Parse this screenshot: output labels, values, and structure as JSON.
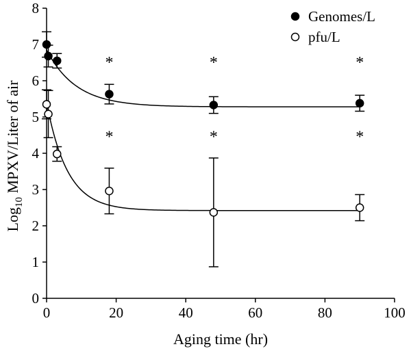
{
  "chart_data": {
    "type": "scatter",
    "xlabel": "Aging time (hr)",
    "ylabel_base": "Log",
    "ylabel_sub": "10",
    "ylabel_rest": " MPXV/Liter of air",
    "xlim": [
      0,
      100
    ],
    "ylim": [
      0,
      8
    ],
    "xticks": [
      0,
      20,
      40,
      60,
      80,
      100
    ],
    "yticks": [
      0,
      1,
      2,
      3,
      4,
      5,
      6,
      7,
      8
    ],
    "grid": false,
    "legend_position": "top-right",
    "series": [
      {
        "name": "Genomes/L",
        "marker": "filled-circle",
        "x": [
          0,
          0.5,
          3,
          18,
          48,
          90
        ],
        "y": [
          7.0,
          6.68,
          6.55,
          5.63,
          5.33,
          5.38
        ],
        "err": [
          0.35,
          0.3,
          0.2,
          0.27,
          0.23,
          0.22
        ],
        "fit": {
          "a": 5.28,
          "b": 1.57,
          "tau": 8.5
        }
      },
      {
        "name": "pfu/L",
        "marker": "open-circle",
        "x": [
          0,
          0.5,
          3,
          18,
          48,
          90
        ],
        "y": [
          5.35,
          5.08,
          3.98,
          2.96,
          2.37,
          2.5
        ],
        "err": [
          0.4,
          0.65,
          0.2,
          0.63,
          1.5,
          0.36
        ],
        "fit": {
          "a": 2.42,
          "b": 2.98,
          "tau": 6.0
        }
      }
    ],
    "annotations": [
      {
        "text": "*",
        "x": 18,
        "y": 6.55
      },
      {
        "text": "*",
        "x": 48,
        "y": 6.55
      },
      {
        "text": "*",
        "x": 90,
        "y": 6.55
      },
      {
        "text": "*",
        "x": 18,
        "y": 4.5
      },
      {
        "text": "*",
        "x": 48,
        "y": 4.5
      },
      {
        "text": "*",
        "x": 90,
        "y": 4.5
      }
    ]
  }
}
